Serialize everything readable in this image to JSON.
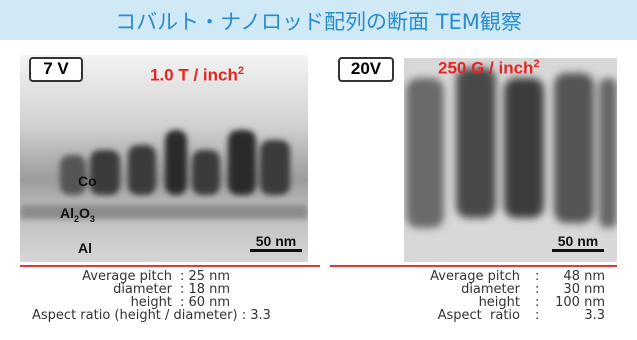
{
  "title": "コバルト・ナノロッド配列の断面 TEM観察",
  "left": {
    "voltage": "7 V",
    "density": "1.0 T / inch",
    "density_sup": "2",
    "layers": {
      "co": "Co",
      "al2o3": [
        "Al",
        "2",
        "O",
        "3"
      ],
      "al": "Al"
    },
    "scale": "50 nm",
    "stats": [
      [
        "Average pitch",
        ": 25 nm"
      ],
      [
        "diameter",
        ": 18 nm"
      ],
      [
        "height",
        ": 60 nm"
      ]
    ],
    "aspect": "Aspect ratio (height / diameter) : 3.3"
  },
  "right": {
    "voltage": "20V",
    "density": "250 G / inch",
    "density_sup": "2",
    "scale": "50 nm",
    "stats": [
      [
        "Average pitch",
        ":",
        "48 nm"
      ],
      [
        "diameter",
        ":",
        "30 nm"
      ],
      [
        "height",
        ":",
        "100 nm"
      ],
      [
        "Aspect  ratio",
        ":",
        "3.3"
      ]
    ]
  }
}
